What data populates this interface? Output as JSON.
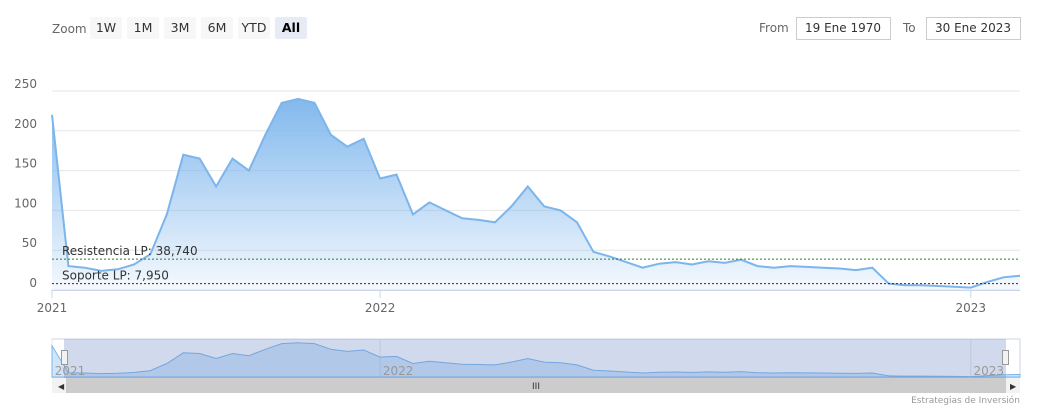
{
  "range_selector": {
    "label": "Zoom",
    "buttons": [
      {
        "label": "1W"
      },
      {
        "label": "1M"
      },
      {
        "label": "3M"
      },
      {
        "label": "6M"
      },
      {
        "label": "YTD"
      },
      {
        "label": "All",
        "active": true
      }
    ],
    "from_label": "From",
    "from": "19 Ene 1970",
    "to_label": "To",
    "to": "30 Ene 2023"
  },
  "chart_data": {
    "type": "area",
    "categories": [
      "2021",
      null,
      null,
      null,
      null,
      null,
      null,
      null,
      null,
      null,
      null,
      null,
      null,
      null,
      null,
      null,
      null,
      null,
      null,
      null,
      "2022",
      null,
      null,
      null,
      null,
      null,
      null,
      null,
      null,
      null,
      null,
      null,
      null,
      null,
      null,
      null,
      null,
      null,
      null,
      null,
      null,
      null,
      null,
      null,
      null,
      null,
      null,
      null,
      null,
      null,
      null,
      null,
      null,
      null,
      null,
      null,
      "2023",
      null,
      null,
      null
    ],
    "series": [
      {
        "color": "#7cb5ec",
        "values": [
          220,
          30,
          28,
          24,
          26,
          32,
          45,
          95,
          170,
          165,
          130,
          165,
          150,
          195,
          235,
          240,
          235,
          195,
          180,
          190,
          140,
          145,
          95,
          110,
          100,
          90,
          88,
          85,
          105,
          130,
          105,
          100,
          85,
          48,
          42,
          35,
          28,
          33,
          35,
          32,
          36,
          34,
          38,
          30,
          28,
          30,
          29,
          28,
          27,
          25,
          28,
          8,
          6,
          6,
          5,
          4,
          3,
          10,
          16,
          18
        ]
      }
    ],
    "ylim": [
      0,
      260
    ],
    "yticks": [
      0,
      50,
      100,
      150,
      200,
      250
    ],
    "grid": true,
    "plot_lines": [
      {
        "value": 38.74,
        "label": "Resistencia LP: 38,740",
        "color": "#2e7d32"
      },
      {
        "value": 7.95,
        "label": "Soporte LP: 7,950",
        "color": "#7b1010"
      }
    ]
  },
  "credits": "Estrategias de Inversión"
}
